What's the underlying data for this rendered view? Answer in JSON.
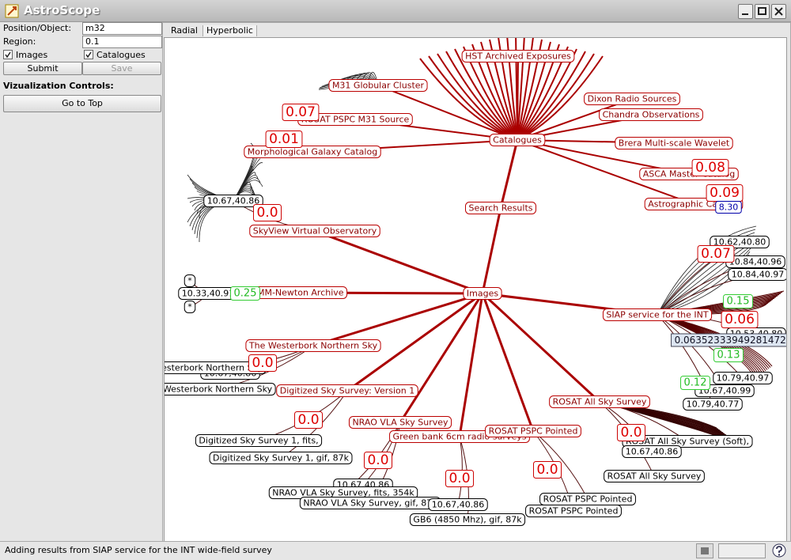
{
  "window": {
    "title": "AstroScope"
  },
  "form": {
    "position_label": "Position/Object:",
    "position_value": "m32",
    "region_label": "Region:",
    "region_value": "0.1",
    "images": "Images",
    "catalogues": "Catalogues",
    "submit": "Submit",
    "save": "Save",
    "viz_heading": "Vizualization Controls:",
    "go_to_top": "Go to Top"
  },
  "tabs": [
    "Radial",
    "Hyperbolic"
  ],
  "graph": {
    "nodes": [
      "Images",
      "Search Results",
      "Catalogues",
      "HST Archived Exposures",
      "M31 Globular Cluster",
      "ROSAT PSPC M31 Source",
      "Morphological Galaxy Catalog",
      "Dixon Radio Sources",
      "Chandra Observations",
      "Brera Multi-scale Wavelet",
      "ASCA Master Catalog",
      "Astrographic Catalog",
      "SkyView Virtual Observatory",
      "XMM-Newton Archive",
      "SIAP service for the INT",
      "The Westerbork Northern Sky",
      "Digitized Sky Survey: Version 1",
      "NRAO VLA Sky Survey",
      "Green bank 6cm radio surveys",
      "ROSAT PSPC Pointed",
      "ROSAT All Sky Survey",
      "10.67,40.86",
      "10.33,40.91",
      "*",
      "*",
      "10.62,40.80",
      "10.84,40.96",
      "10.84,40.97",
      "10.53,40.80",
      "10.79,40.97",
      "10.67,40.99",
      "10.79,40.77",
      "10.67,40.86",
      "Westerbork Northern Sky",
      "Westerbork Northern Sky",
      "Digitized Sky Survey 1, fits,",
      "Digitized Sky Survey 1, gif, 87k",
      "10.67,40.86",
      "NRAO VLA Sky Survey, fits, 354k",
      "NRAO VLA Sky Survey, gif, 87k",
      "10.67,40.86",
      "GB6 (4850 Mhz), gif, 87k",
      "ROSAT PSPC Pointed",
      "ROSAT PSPC Pointed",
      "ROSAT All Sky Survey (Soft),",
      "10.67,40.86",
      "ROSAT All Sky Survey",
      "0.07",
      "0.01",
      "0.08",
      "0.09",
      "0.0",
      "0.07",
      "0.06",
      "0.0",
      "0.0",
      "0.0",
      "0.0",
      "0.0",
      "0.0",
      "0.25",
      "0.15",
      "0.13",
      "0.12",
      "8.30",
      "0.063523339492814721"
    ]
  },
  "status": "Adding results from SIAP service for the INT wide-field survey"
}
